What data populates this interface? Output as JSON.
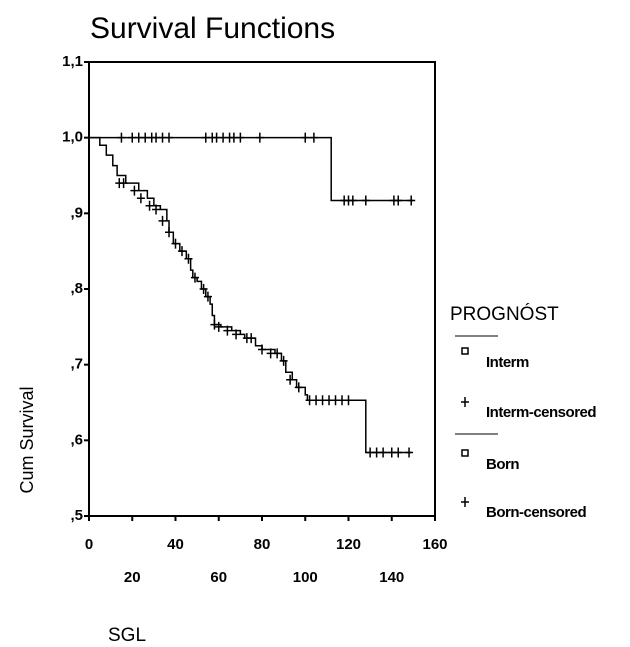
{
  "chart_data": {
    "type": "step",
    "title": "Survival Functions",
    "x_label": "SGL",
    "y_label": "Cum Survival",
    "legend_title": "PROGNÓST",
    "xlim": [
      0,
      160
    ],
    "ylim": [
      0.5,
      1.1
    ],
    "xticks": [
      0,
      20,
      40,
      60,
      80,
      100,
      120,
      140,
      160
    ],
    "yticks": [
      {
        "value": 1.1,
        "label": "1,1"
      },
      {
        "value": 1.0,
        "label": "1,0"
      },
      {
        "value": 0.9,
        "label": ",9"
      },
      {
        "value": 0.8,
        "label": ",8"
      },
      {
        "value": 0.7,
        "label": ",7"
      },
      {
        "value": 0.6,
        "label": ",6"
      },
      {
        "value": 0.5,
        "label": ",5"
      }
    ],
    "series": [
      {
        "name": "Interm",
        "color": "#000000",
        "marker": "square",
        "x": [
          0,
          5,
          8,
          11,
          13,
          17,
          23,
          27,
          30,
          33,
          36,
          37,
          39,
          42,
          45,
          47,
          48,
          50,
          52,
          54,
          56,
          57,
          58,
          61,
          66,
          70,
          72,
          77,
          80,
          86,
          89,
          91,
          94,
          96,
          100,
          101,
          128,
          149
        ],
        "values": [
          1.0,
          0.99,
          0.977,
          0.963,
          0.95,
          0.94,
          0.93,
          0.92,
          0.91,
          0.905,
          0.89,
          0.875,
          0.86,
          0.85,
          0.84,
          0.825,
          0.815,
          0.81,
          0.8,
          0.79,
          0.78,
          0.765,
          0.753,
          0.75,
          0.745,
          0.74,
          0.735,
          0.725,
          0.72,
          0.715,
          0.705,
          0.69,
          0.68,
          0.67,
          0.66,
          0.653,
          0.584,
          0.584
        ]
      },
      {
        "name": "Interm-censored",
        "color": "#000000",
        "marker": "plus",
        "x": [
          14,
          16,
          21,
          24,
          28,
          31,
          34,
          37,
          40,
          43,
          46,
          49,
          53,
          55,
          58,
          60,
          64,
          68,
          73,
          75,
          80,
          84,
          87,
          90,
          93,
          97,
          102,
          105,
          108,
          111,
          114,
          117,
          120,
          130,
          133,
          136,
          140,
          143,
          148
        ],
        "values": [
          0.94,
          0.94,
          0.93,
          0.92,
          0.91,
          0.905,
          0.89,
          0.875,
          0.86,
          0.85,
          0.84,
          0.815,
          0.8,
          0.79,
          0.753,
          0.75,
          0.745,
          0.74,
          0.735,
          0.735,
          0.72,
          0.715,
          0.715,
          0.705,
          0.68,
          0.67,
          0.653,
          0.653,
          0.653,
          0.653,
          0.653,
          0.653,
          0.653,
          0.584,
          0.584,
          0.584,
          0.584,
          0.584,
          0.584
        ]
      },
      {
        "name": "Born",
        "color": "#000000",
        "marker": "square",
        "x": [
          0,
          112,
          150
        ],
        "values": [
          1.0,
          0.917,
          0.917
        ]
      },
      {
        "name": "Born-censored",
        "color": "#000000",
        "marker": "plus",
        "x": [
          15,
          20,
          23,
          26,
          29,
          31,
          34,
          37,
          54,
          57,
          59,
          62,
          65,
          67,
          70,
          79,
          100,
          104,
          118,
          120,
          122,
          128,
          141,
          143,
          149
        ],
        "values": [
          1.0,
          1.0,
          1.0,
          1.0,
          1.0,
          1.0,
          1.0,
          1.0,
          1.0,
          1.0,
          1.0,
          1.0,
          1.0,
          1.0,
          1.0,
          1.0,
          1.0,
          1.0,
          0.917,
          0.917,
          0.917,
          0.917,
          0.917,
          0.917,
          0.917
        ]
      }
    ]
  }
}
